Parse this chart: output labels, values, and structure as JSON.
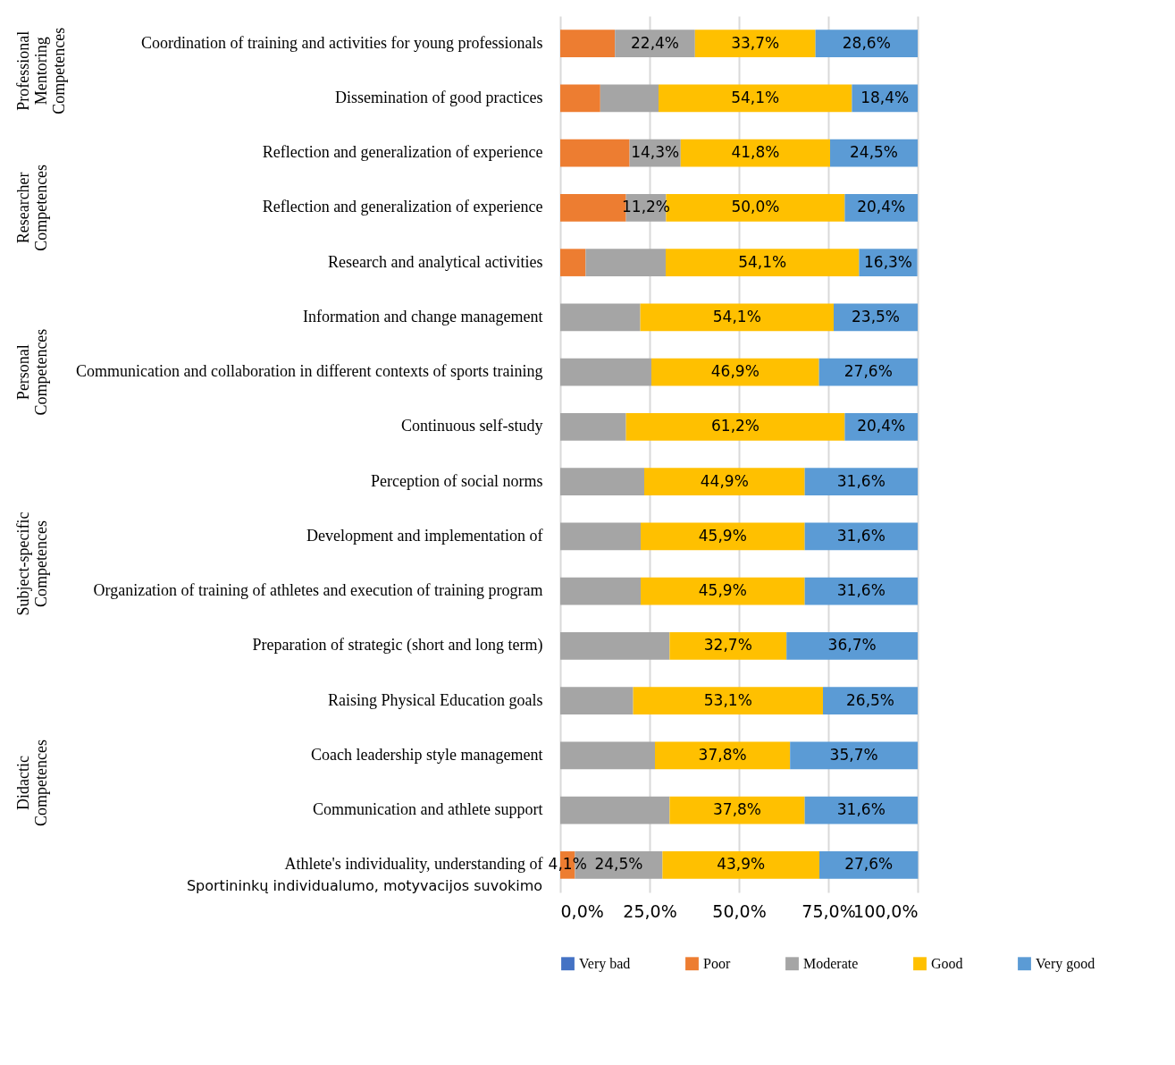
{
  "chart_data": {
    "type": "bar",
    "orientation": "horizontal",
    "stacked": true,
    "grid": "x",
    "legend": "bottom",
    "categories": [
      "Coordination of training and activities for young professionals",
      "Dissemination of good practices",
      "Reflection and generalization of experience",
      "Reflection and generalization of experience",
      "Research and analytical activities",
      "Information and change management",
      "Communication and collaboration in different contexts of sports training",
      "Continuous self-study",
      "Perception of social norms",
      "Development and implementation of",
      "Organization of training of athletes and execution of training program",
      "Preparation of strategic (short and long term)",
      "Raising Physical Education goals",
      "Coach leadership style management",
      "Communication and athlete support",
      "Athlete's individuality, understanding of"
    ],
    "xlim": [
      0,
      100
    ],
    "xticks": [
      {
        "value": 0,
        "label": "0,0%"
      },
      {
        "value": 25,
        "label": "25,0%"
      },
      {
        "value": 50,
        "label": "50,0%"
      },
      {
        "value": 75,
        "label": "75,0%"
      },
      {
        "value": 100,
        "label": "100,0%"
      }
    ],
    "series": [
      {
        "name": "Very bad",
        "color": "#4472c4",
        "values": [
          null,
          null,
          null,
          null,
          null,
          null,
          null,
          null,
          null,
          null,
          null,
          null,
          null,
          null,
          null,
          null
        ],
        "value_labels": [
          null,
          null,
          null,
          null,
          null,
          null,
          null,
          null,
          null,
          null,
          null,
          null,
          null,
          null,
          null,
          null
        ]
      },
      {
        "name": "Poor",
        "color": "#ed7d31",
        "values": [
          15.3,
          11.2,
          19.4,
          18.4,
          7.1,
          null,
          null,
          null,
          null,
          null,
          null,
          null,
          null,
          null,
          null,
          4.1
        ],
        "value_labels": [
          null,
          null,
          null,
          null,
          null,
          null,
          null,
          null,
          null,
          null,
          null,
          null,
          null,
          null,
          null,
          "4,1%"
        ]
      },
      {
        "name": "Moderate",
        "color": "#a5a5a5",
        "values": [
          22.4,
          16.3,
          14.3,
          11.2,
          22.4,
          22.4,
          25.5,
          18.4,
          23.5,
          22.5,
          22.5,
          30.6,
          20.4,
          26.5,
          30.6,
          24.5
        ],
        "value_labels": [
          "22,4%",
          null,
          "14,3%",
          "11,2%",
          null,
          null,
          null,
          null,
          null,
          null,
          null,
          null,
          null,
          null,
          null,
          "24,5%"
        ]
      },
      {
        "name": "Good",
        "color": "#ffc000",
        "values": [
          33.7,
          54.1,
          41.8,
          50.0,
          54.1,
          54.1,
          46.9,
          61.2,
          44.9,
          45.9,
          45.9,
          32.7,
          53.1,
          37.8,
          37.8,
          43.9
        ],
        "value_labels": [
          "33,7%",
          "54,1%",
          "41,8%",
          "50,0%",
          "54,1%",
          "54,1%",
          "46,9%",
          "61,2%",
          "44,9%",
          "45,9%",
          "45,9%",
          "32,7%",
          "53,1%",
          "37,8%",
          "37,8%",
          "43,9%"
        ]
      },
      {
        "name": "Very good",
        "color": "#5b9bd5",
        "values": [
          28.6,
          18.4,
          24.5,
          20.4,
          16.3,
          23.5,
          27.6,
          20.4,
          31.6,
          31.6,
          31.6,
          36.7,
          26.5,
          35.7,
          31.6,
          27.6
        ],
        "value_labels": [
          "28,6%",
          "18,4%",
          "24,5%",
          "20,4%",
          "16,3%",
          "23,5%",
          "27,6%",
          "20,4%",
          "31,6%",
          "31,6%",
          "31,6%",
          "36,7%",
          "26,5%",
          "35,7%",
          "31,6%",
          "27,6%"
        ]
      }
    ],
    "annotations": [
      "Professional Mentoring Competences",
      "Researcher Competences",
      "Personal Competences",
      "Subject-specific Competences",
      "Didactic Competences",
      "Sportininkų individualumo, motyvacijos suvokimo"
    ]
  }
}
